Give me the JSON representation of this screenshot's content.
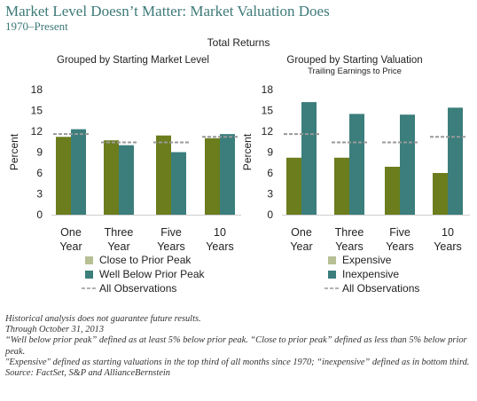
{
  "header": {
    "title": "Market Level Doesn’t Matter: Market Valuation Does",
    "subtitle": "1970–Present",
    "total_returns": "Total Returns"
  },
  "colors": {
    "accent_title": "#3d7a78",
    "olive": "#6b7d1d",
    "light_olive": "#b7bf95",
    "teal": "#3b7e7c",
    "light_teal": "#9fc2c0",
    "all_obs": "#999999"
  },
  "chart_data": [
    {
      "type": "bar",
      "title": "Grouped by Starting Market Level",
      "subtitle": "",
      "ylabel": "Percent",
      "ylim": [
        0,
        18
      ],
      "yticks": [
        0,
        3,
        6,
        9,
        12,
        15,
        18
      ],
      "categories": [
        "One\nYear",
        "Three\nYear",
        "Five\nYears",
        "10\nYears"
      ],
      "series": [
        {
          "name": "Close to Prior Peak",
          "values": [
            11.2,
            10.7,
            11.4,
            11.0
          ]
        },
        {
          "name": "Well Below Prior Peak",
          "values": [
            12.3,
            10.0,
            9.0,
            11.6
          ]
        }
      ],
      "all_observations": {
        "name": "All Observations",
        "values": [
          11.6,
          10.4,
          10.4,
          11.2
        ]
      },
      "grid": false,
      "legend": "bottom"
    },
    {
      "type": "bar",
      "title": "Grouped by Starting Valuation",
      "subtitle": "Trailing Earnings to Price",
      "ylabel": "Percent",
      "ylim": [
        0,
        18
      ],
      "yticks": [
        0,
        3,
        6,
        9,
        12,
        15,
        18
      ],
      "categories": [
        "One\nYear",
        "Three\nYears",
        "Five\nYears",
        "10\nYears"
      ],
      "series": [
        {
          "name": "Expensive",
          "values": [
            8.2,
            8.2,
            6.9,
            6.0
          ]
        },
        {
          "name": "Inexpensive",
          "values": [
            16.2,
            14.5,
            14.4,
            15.4
          ]
        }
      ],
      "all_observations": {
        "name": "All Observations",
        "values": [
          11.6,
          10.4,
          10.4,
          11.2
        ]
      },
      "grid": false,
      "legend": "bottom"
    }
  ],
  "footnotes": [
    "Historical analysis does not guarantee future results.",
    "Through October 31, 2013",
    "“Well below prior peak” defined as at least 5% below prior peak. “Close to prior peak” defined as less than 5% below prior peak.",
    "\"Expensive\" defined as starting valuations in the top third of all months since 1970; “inexpensive” defined as in bottom third.",
    "Source: FactSet, S&P and AllianceBernstein"
  ]
}
